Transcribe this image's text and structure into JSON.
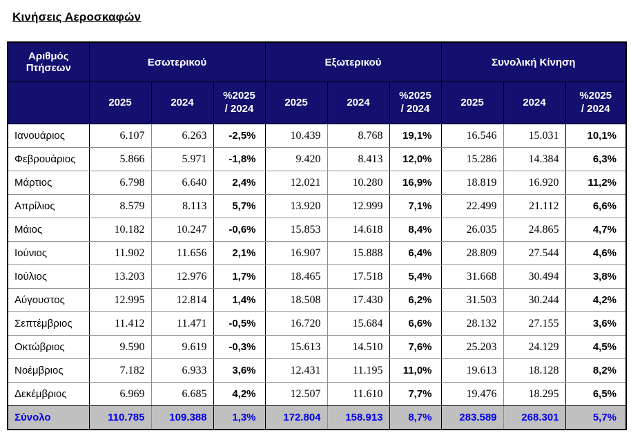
{
  "page_title": "Κινήσεις Αεροσκαφών",
  "colors": {
    "header_bg": "#141070",
    "header_text": "#FFFFFF",
    "totals_bg": "#C0C0C0",
    "totals_text": "#0000EE",
    "grid_line": "#8C8C8C",
    "dark_line": "#000000"
  },
  "table": {
    "corner_header": "Αριθμός Πτήσεων",
    "groups": [
      {
        "label": "Εσωτερικού"
      },
      {
        "label": "Εξωτερικού"
      },
      {
        "label": "Συνολική Κίνηση"
      }
    ],
    "sub_headers": [
      "2025",
      "2024",
      "%2025\n/ 2024",
      "2025",
      "2024",
      "%2025\n/ 2024",
      "2025",
      "2024",
      "%2025\n/ 2024"
    ],
    "rows": [
      {
        "month": "Ιανουάριος",
        "domestic": [
          "6.107",
          "6.263",
          "-2,5%"
        ],
        "international": [
          "10.439",
          "8.768",
          "19,1%"
        ],
        "total": [
          "16.546",
          "15.031",
          "10,1%"
        ]
      },
      {
        "month": "Φεβρουάριος",
        "domestic": [
          "5.866",
          "5.971",
          "-1,8%"
        ],
        "international": [
          "9.420",
          "8.413",
          "12,0%"
        ],
        "total": [
          "15.286",
          "14.384",
          "6,3%"
        ]
      },
      {
        "month": "Μάρτιος",
        "domestic": [
          "6.798",
          "6.640",
          "2,4%"
        ],
        "international": [
          "12.021",
          "10.280",
          "16,9%"
        ],
        "total": [
          "18.819",
          "16.920",
          "11,2%"
        ]
      },
      {
        "month": "Απρίλιος",
        "domestic": [
          "8.579",
          "8.113",
          "5,7%"
        ],
        "international": [
          "13.920",
          "12.999",
          "7,1%"
        ],
        "total": [
          "22.499",
          "21.112",
          "6,6%"
        ]
      },
      {
        "month": "Μάιος",
        "domestic": [
          "10.182",
          "10.247",
          "-0,6%"
        ],
        "international": [
          "15.853",
          "14.618",
          "8,4%"
        ],
        "total": [
          "26.035",
          "24.865",
          "4,7%"
        ]
      },
      {
        "month": "Ιούνιος",
        "domestic": [
          "11.902",
          "11.656",
          "2,1%"
        ],
        "international": [
          "16.907",
          "15.888",
          "6,4%"
        ],
        "total": [
          "28.809",
          "27.544",
          "4,6%"
        ]
      },
      {
        "month": "Ιούλιος",
        "domestic": [
          "13.203",
          "12.976",
          "1,7%"
        ],
        "international": [
          "18.465",
          "17.518",
          "5,4%"
        ],
        "total": [
          "31.668",
          "30.494",
          "3,8%"
        ]
      },
      {
        "month": "Αύγουστος",
        "domestic": [
          "12.995",
          "12.814",
          "1,4%"
        ],
        "international": [
          "18.508",
          "17.430",
          "6,2%"
        ],
        "total": [
          "31.503",
          "30.244",
          "4,2%"
        ]
      },
      {
        "month": "Σεπτέμβριος",
        "domestic": [
          "11.412",
          "11.471",
          "-0,5%"
        ],
        "international": [
          "16.720",
          "15.684",
          "6,6%"
        ],
        "total": [
          "28.132",
          "27.155",
          "3,6%"
        ]
      },
      {
        "month": "Οκτώβριος",
        "domestic": [
          "9.590",
          "9.619",
          "-0,3%"
        ],
        "international": [
          "15.613",
          "14.510",
          "7,6%"
        ],
        "total": [
          "25.203",
          "24.129",
          "4,5%"
        ]
      },
      {
        "month": "Νοέμβριος",
        "domestic": [
          "7.182",
          "6.933",
          "3,6%"
        ],
        "international": [
          "12.431",
          "11.195",
          "11,0%"
        ],
        "total": [
          "19.613",
          "18.128",
          "8,2%"
        ]
      },
      {
        "month": "Δεκέμβριος",
        "domestic": [
          "6.969",
          "6.685",
          "4,2%"
        ],
        "international": [
          "12.507",
          "11.610",
          "7,7%"
        ],
        "total": [
          "19.476",
          "18.295",
          "6,5%"
        ]
      }
    ],
    "totals_row": {
      "label": "Σύνολο",
      "domestic": [
        "110.785",
        "109.388",
        "1,3%"
      ],
      "international": [
        "172.804",
        "158.913",
        "8,7%"
      ],
      "total": [
        "283.589",
        "268.301",
        "5,7%"
      ]
    }
  }
}
